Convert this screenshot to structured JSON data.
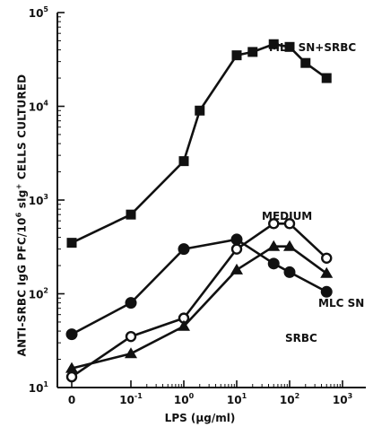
{
  "chart_data": {
    "type": "line",
    "xlabel_prefix": "LPS (",
    "xlabel_unit": "μg/ml",
    "xlabel_suffix": ")",
    "ylabel_parts": {
      "a": "ANTI-SRBC IgG PFC/",
      "b": " CELLS CULTURED",
      "ten": "10",
      "exp6": "6",
      "sig": " sIg",
      "plus": "+"
    },
    "x_scale": "log with zero offset",
    "x_ticks": [
      {
        "value": 0,
        "base": "0",
        "exp": ""
      },
      {
        "value": 0.1,
        "base": "10",
        "exp": "-1"
      },
      {
        "value": 1,
        "base": "10",
        "exp": "0"
      },
      {
        "value": 10,
        "base": "10",
        "exp": "1"
      },
      {
        "value": 100,
        "base": "10",
        "exp": "2"
      },
      {
        "value": 1000,
        "base": "10",
        "exp": "3"
      }
    ],
    "y_scale": "log",
    "ylim": [
      10,
      100000
    ],
    "y_ticks": [
      {
        "value": 10,
        "base": "10",
        "exp": "1"
      },
      {
        "value": 100,
        "base": "10",
        "exp": "2"
      },
      {
        "value": 1000,
        "base": "10",
        "exp": "3"
      },
      {
        "value": 10000,
        "base": "10",
        "exp": "4"
      },
      {
        "value": 100000,
        "base": "10",
        "exp": "5"
      }
    ],
    "series": [
      {
        "name": "MLC SN+SRBC",
        "marker": "filled-square",
        "x": [
          0,
          0.1,
          1,
          2,
          10,
          20,
          50,
          100,
          200,
          500
        ],
        "y": [
          350,
          700,
          2600,
          9000,
          35000,
          38000,
          46000,
          43000,
          29000,
          20000
        ]
      },
      {
        "name": "MEDIUM",
        "marker": "open-circle",
        "x": [
          0,
          0.1,
          1,
          10,
          50,
          100,
          500
        ],
        "y": [
          13,
          35,
          55,
          300,
          560,
          560,
          240
        ]
      },
      {
        "name": "MLC SN",
        "marker": "filled-triangle",
        "x": [
          0,
          0.1,
          1,
          10,
          50,
          100,
          500
        ],
        "y": [
          16,
          23,
          45,
          180,
          320,
          320,
          165
        ]
      },
      {
        "name": "SRBC",
        "marker": "filled-circle",
        "x": [
          0,
          0.1,
          1,
          10,
          50,
          100,
          500
        ],
        "y": [
          37,
          80,
          300,
          380,
          210,
          170,
          105
        ]
      }
    ]
  }
}
